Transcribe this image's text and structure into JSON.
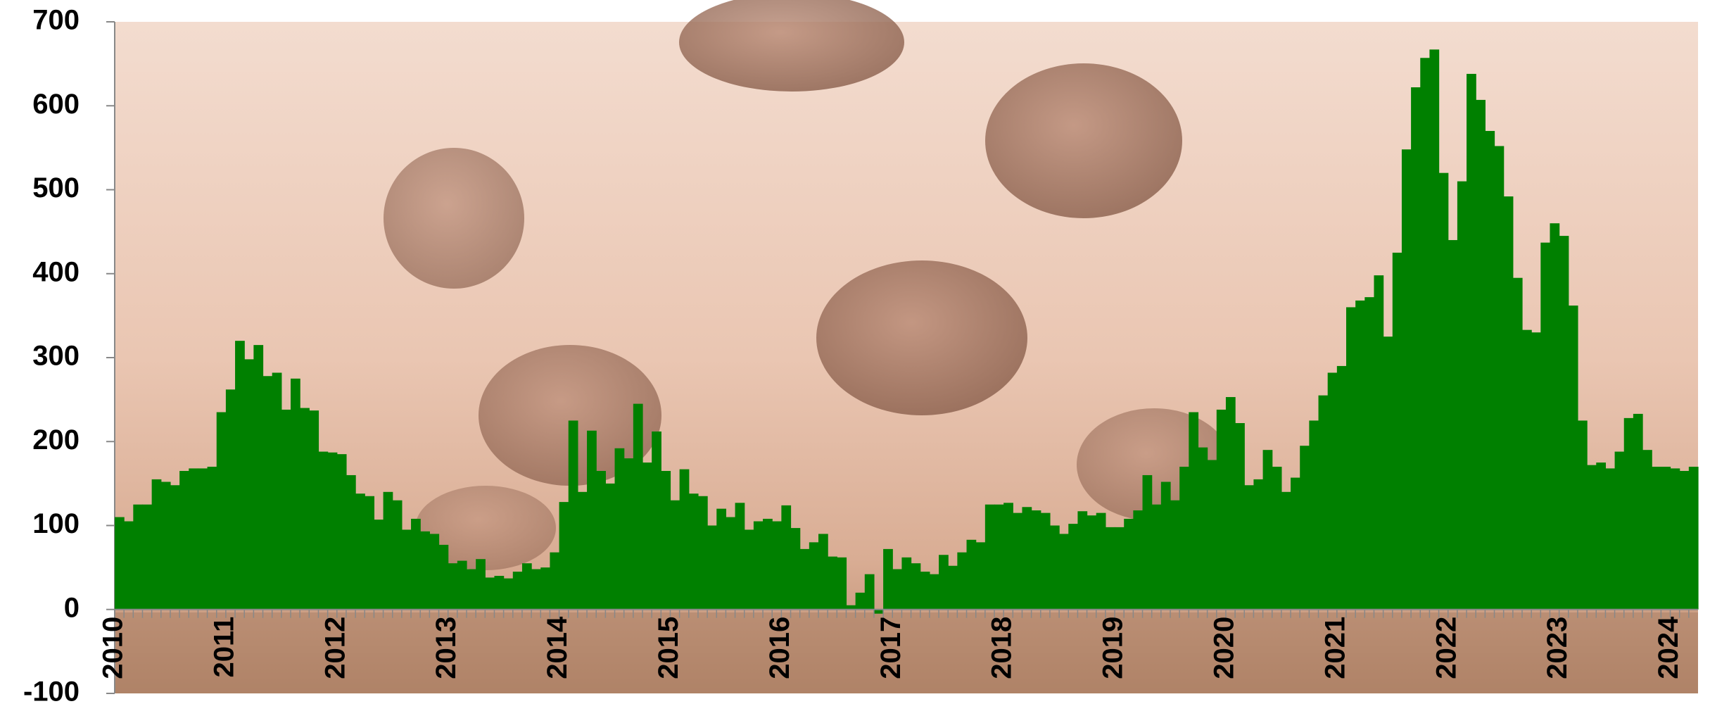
{
  "chart_data": {
    "type": "bar",
    "categories": [
      "2010",
      null,
      null,
      null,
      null,
      null,
      null,
      null,
      null,
      null,
      null,
      null,
      "2011",
      null,
      null,
      null,
      null,
      null,
      null,
      null,
      null,
      null,
      null,
      null,
      "2012",
      null,
      null,
      null,
      null,
      null,
      null,
      null,
      null,
      null,
      null,
      null,
      "2013",
      null,
      null,
      null,
      null,
      null,
      null,
      null,
      null,
      null,
      null,
      null,
      "2014",
      null,
      null,
      null,
      null,
      null,
      null,
      null,
      null,
      null,
      null,
      null,
      "2015",
      null,
      null,
      null,
      null,
      null,
      null,
      null,
      null,
      null,
      null,
      null,
      "2016",
      null,
      null,
      null,
      null,
      null,
      null,
      null,
      null,
      null,
      null,
      null,
      "2017",
      null,
      null,
      null,
      null,
      null,
      null,
      null,
      null,
      null,
      null,
      null,
      "2018",
      null,
      null,
      null,
      null,
      null,
      null,
      null,
      null,
      null,
      null,
      null,
      "2019",
      null,
      null,
      null,
      null,
      null,
      null,
      null,
      null,
      null,
      null,
      null,
      "2020",
      null,
      null,
      null,
      null,
      null,
      null,
      null,
      null,
      null,
      null,
      null,
      "2021",
      null,
      null,
      null,
      null,
      null,
      null,
      null,
      null,
      null,
      null,
      null,
      "2022",
      null,
      null,
      null,
      null,
      null,
      null,
      null,
      null,
      null,
      null,
      null,
      "2023",
      null,
      null,
      null,
      null,
      null,
      null,
      null,
      null,
      null,
      null,
      null,
      "2024",
      null,
      null
    ],
    "values": [
      110,
      105,
      125,
      125,
      155,
      152,
      148,
      165,
      168,
      168,
      170,
      235,
      262,
      320,
      298,
      315,
      278,
      282,
      238,
      275,
      240,
      237,
      188,
      187,
      185,
      160,
      138,
      135,
      107,
      140,
      130,
      95,
      108,
      93,
      90,
      77,
      55,
      58,
      48,
      60,
      38,
      40,
      37,
      45,
      55,
      48,
      50,
      68,
      128,
      225,
      140,
      213,
      165,
      150,
      192,
      180,
      245,
      175,
      212,
      165,
      130,
      167,
      138,
      135,
      100,
      120,
      110,
      127,
      95,
      105,
      108,
      105,
      124,
      97,
      72,
      80,
      90,
      63,
      62,
      5,
      20,
      42,
      -5,
      72,
      48,
      62,
      55,
      45,
      42,
      65,
      52,
      68,
      83,
      80,
      125,
      125,
      127,
      115,
      122,
      118,
      115,
      100,
      90,
      102,
      117,
      112,
      115,
      98,
      98,
      108,
      118,
      160,
      125,
      152,
      130,
      170,
      235,
      193,
      178,
      238,
      253,
      222,
      148,
      155,
      190,
      170,
      140,
      157,
      195,
      225,
      255,
      282,
      290,
      360,
      368,
      372,
      398,
      325,
      425,
      548,
      622,
      657,
      667,
      520,
      440,
      510,
      638,
      607,
      570,
      552,
      492,
      395,
      333,
      330,
      437,
      460,
      445,
      362,
      225,
      172,
      175,
      168,
      188,
      228,
      233,
      190,
      170,
      170,
      168,
      165,
      170
    ],
    "color": "#008000",
    "ylim": [
      -100,
      700
    ],
    "yticks": [
      -100,
      0,
      100,
      200,
      300,
      400,
      500,
      600,
      700
    ],
    "grid": false
  }
}
